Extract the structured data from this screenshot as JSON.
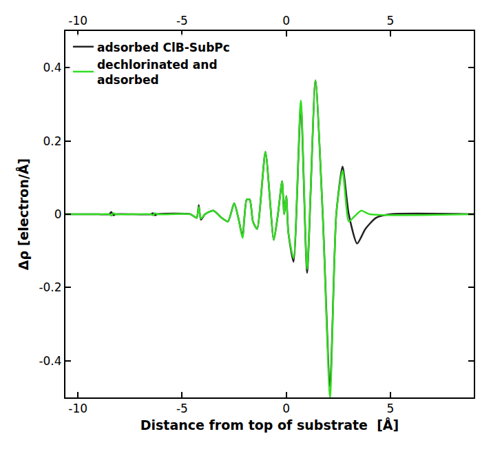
{
  "chart_data": {
    "type": "line",
    "x_label": "Distance from top of substrate  [Å]",
    "y_label": "Δρ [electron/Å]",
    "xlim": [
      -10.6,
      9
    ],
    "xticks": [
      -10,
      -5,
      0,
      5
    ],
    "ylim": [
      -0.5,
      0.5
    ],
    "yticks": [
      -0.4,
      -0.2,
      0,
      0.2,
      0.4
    ],
    "legend": "top-left",
    "grid": false,
    "series": [
      {
        "name": "adsorbed ClB-SubPc",
        "color": "#222222",
        "x": [
          -10.6,
          -9,
          -8.5,
          -8.4,
          -8.3,
          -8.2,
          -6.5,
          -6.4,
          -6.3,
          -6.2,
          -4.6,
          -4.3,
          -4.2,
          -4.1,
          -3.9,
          -3.5,
          -3.1,
          -2.8,
          -2.5,
          -2.3,
          -2.1,
          -1.9,
          -1.75,
          -1.6,
          -1.4,
          -1.0,
          -0.6,
          -0.4,
          -0.2,
          -0.1,
          0.0,
          0.1,
          0.35,
          0.7,
          1.0,
          1.4,
          1.75,
          2.1,
          2.4,
          2.7,
          3.0,
          3.4,
          3.8,
          4.3,
          5,
          9
        ],
        "values": [
          0,
          0,
          0,
          0.006,
          -0.003,
          0,
          0,
          0.003,
          -0.003,
          0,
          0,
          -0.01,
          0.025,
          -0.015,
          0,
          0.01,
          -0.01,
          -0.02,
          0.03,
          -0.01,
          -0.06,
          0.04,
          0.04,
          -0.02,
          -0.04,
          0.17,
          -0.07,
          0.0,
          0.09,
          0.0,
          0.05,
          -0.05,
          -0.13,
          0.3,
          -0.16,
          0.365,
          0.0,
          -0.47,
          0.0,
          0.13,
          0.0,
          -0.08,
          -0.04,
          -0.01,
          0,
          0
        ]
      },
      {
        "name": "dechlorinated and adsorbed",
        "color": "#33dd22",
        "x": [
          -10.6,
          -9,
          -8.5,
          -8.4,
          -8.3,
          -8.2,
          -6.5,
          -6.4,
          -6.3,
          -6.2,
          -4.6,
          -4.3,
          -4.2,
          -4.1,
          -3.9,
          -3.5,
          -3.1,
          -2.8,
          -2.5,
          -2.3,
          -2.1,
          -1.9,
          -1.75,
          -1.6,
          -1.4,
          -1.0,
          -0.6,
          -0.4,
          -0.2,
          -0.1,
          0.0,
          0.1,
          0.35,
          0.7,
          1.0,
          1.4,
          1.75,
          2.1,
          2.4,
          2.7,
          3.0,
          3.2,
          3.6,
          4.0,
          9
        ],
        "values": [
          0,
          0,
          0,
          -0.004,
          0.003,
          0,
          0,
          -0.003,
          0.003,
          0,
          0,
          -0.01,
          0.02,
          -0.012,
          0,
          0.01,
          -0.01,
          -0.02,
          0.03,
          -0.01,
          -0.065,
          0.04,
          0.04,
          -0.02,
          -0.04,
          0.17,
          -0.07,
          0.0,
          0.09,
          0.0,
          0.05,
          -0.05,
          -0.12,
          0.31,
          -0.15,
          0.365,
          0.0,
          -0.5,
          0.0,
          0.12,
          -0.02,
          -0.01,
          0.01,
          0,
          0
        ]
      }
    ]
  }
}
